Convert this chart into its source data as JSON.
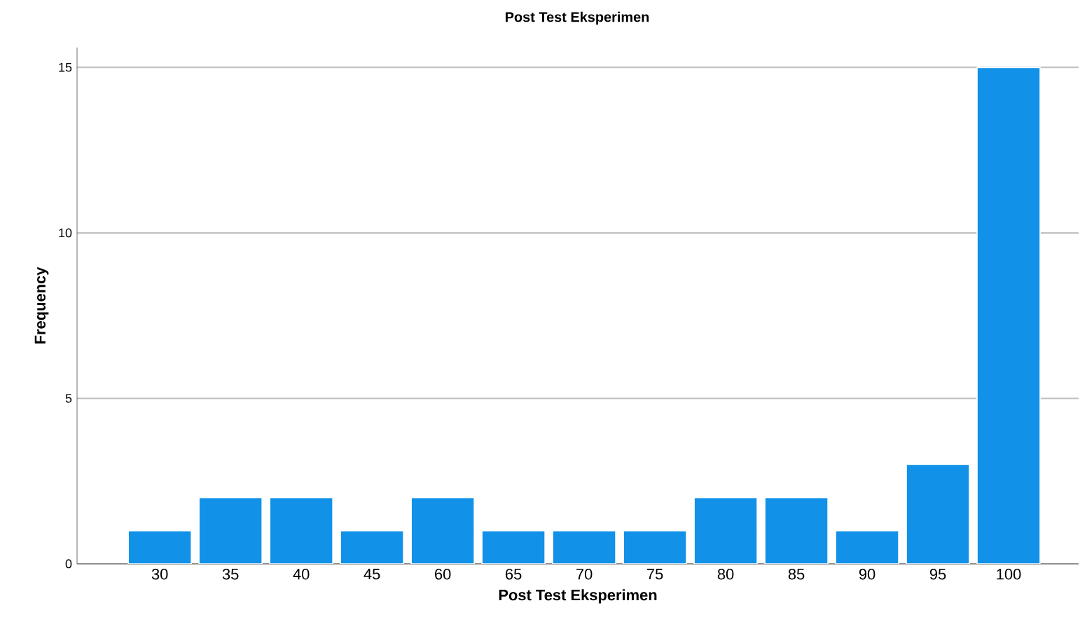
{
  "chart_data": {
    "type": "bar",
    "title": "Post Test Eksperimen",
    "xlabel": "Post Test Eksperimen",
    "ylabel": "Frequency",
    "categories": [
      "30",
      "35",
      "40",
      "45",
      "60",
      "65",
      "70",
      "75",
      "80",
      "85",
      "90",
      "95",
      "100"
    ],
    "values": [
      1,
      2,
      2,
      1,
      2,
      1,
      1,
      1,
      2,
      2,
      1,
      3,
      15
    ],
    "color": "#1192e8",
    "ylim": [
      0,
      15.6
    ],
    "yticks": [
      0,
      5,
      10,
      15
    ],
    "grid": "y"
  }
}
